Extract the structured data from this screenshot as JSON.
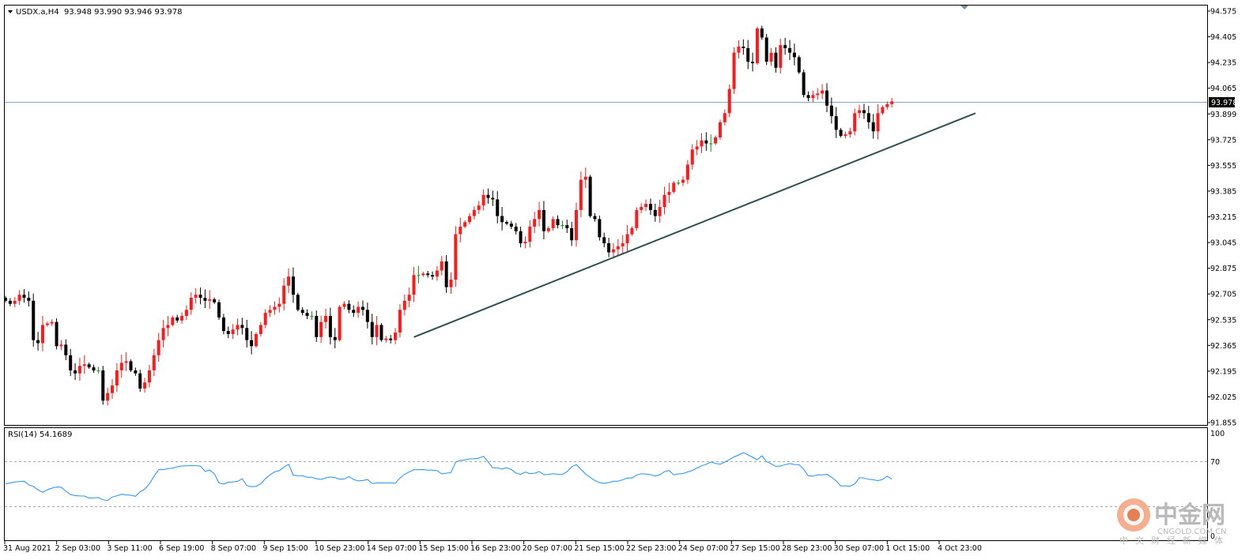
{
  "symbol_line": "USDX.a,H4  93.948 93.990 93.946 93.978",
  "current_price_label": "93.978",
  "rsi_title": "RSI(14) 54.1689",
  "rsi_scale": [
    "100",
    "70",
    "0"
  ],
  "watermark": {
    "name": "中金网",
    "domain": "CNGOLD.COM.CN",
    "tagline": "中文财经新媒体"
  },
  "colors": {
    "bull": "#ff1a1a",
    "bear": "#000000",
    "doji": "#00a000",
    "rsi_line": "#1e90ff",
    "trendline": "#2f4f4f",
    "price_line": "#8aa4c8",
    "level_line": "#a8a8a8"
  },
  "chart_data": [
    {
      "type": "candlestick",
      "symbol": "USDX.a",
      "timeframe": "H4",
      "ohlc_label": {
        "open": 93.948,
        "high": 93.99,
        "low": 93.946,
        "close": 93.978
      },
      "ylim": [
        91.855,
        94.575
      ],
      "yticks": [
        "94.575",
        "94.405",
        "94.235",
        "94.065",
        "93.899",
        "93.725",
        "93.555",
        "93.385",
        "93.215",
        "93.045",
        "92.875",
        "92.705",
        "92.535",
        "92.365",
        "92.195",
        "92.025",
        "91.855"
      ],
      "xticks": [
        "31 Aug 2021",
        "2 Sep 03:00",
        "3 Sep 11:00",
        "6 Sep 19:00",
        "8 Sep 07:00",
        "9 Sep 15:00",
        "10 Sep 23:00",
        "14 Sep 07:00",
        "15 Sep 15:00",
        "16 Sep 23:00",
        "20 Sep 07:00",
        "21 Sep 15:00",
        "22 Sep 23:00",
        "24 Sep 07:00",
        "27 Sep 15:00",
        "28 Sep 23:00",
        "30 Sep 07:00",
        "1 Oct 15:00",
        "4 Oct 23:00"
      ],
      "current_price": 93.978,
      "trendline": {
        "from": {
          "bar": 88,
          "price": 92.42
        },
        "to": {
          "bar": 209,
          "price": 93.9
        }
      },
      "close": [
        92.66,
        92.64,
        92.66,
        92.7,
        92.68,
        92.66,
        92.4,
        92.38,
        92.5,
        92.51,
        92.52,
        92.36,
        92.37,
        92.3,
        92.2,
        92.18,
        92.23,
        92.24,
        92.22,
        92.2,
        92.2,
        92.0,
        92.05,
        92.1,
        92.2,
        92.25,
        92.26,
        92.2,
        92.18,
        92.08,
        92.12,
        92.2,
        92.3,
        92.4,
        92.48,
        92.5,
        92.55,
        92.53,
        92.56,
        92.6,
        92.68,
        92.7,
        92.68,
        92.66,
        92.67,
        92.65,
        92.55,
        92.46,
        92.44,
        92.47,
        92.5,
        92.48,
        92.4,
        92.36,
        92.44,
        92.5,
        92.58,
        92.6,
        92.62,
        92.64,
        92.76,
        92.82,
        92.7,
        92.6,
        92.58,
        92.56,
        92.56,
        92.42,
        92.52,
        92.56,
        92.42,
        92.4,
        92.62,
        92.64,
        92.6,
        92.58,
        92.62,
        92.6,
        92.52,
        92.42,
        92.5,
        92.4,
        92.41,
        92.4,
        92.45,
        92.6,
        92.66,
        92.7,
        92.83,
        92.83,
        92.84,
        92.83,
        92.82,
        92.86,
        92.92,
        92.75,
        92.8,
        93.1,
        93.15,
        93.18,
        93.22,
        93.26,
        93.29,
        93.36,
        93.34,
        93.33,
        93.22,
        93.18,
        93.17,
        93.15,
        93.12,
        93.04,
        93.05,
        93.15,
        93.2,
        93.26,
        93.12,
        93.14,
        93.2,
        93.16,
        93.16,
        93.14,
        93.06,
        93.26,
        93.46,
        93.48,
        93.22,
        93.2,
        93.08,
        93.04,
        92.98,
        93.0,
        93.02,
        93.04,
        93.1,
        93.14,
        93.26,
        93.28,
        93.3,
        93.26,
        93.22,
        93.28,
        93.36,
        93.38,
        93.44,
        93.44,
        93.46,
        93.56,
        93.66,
        93.68,
        93.72,
        93.7,
        93.7,
        93.74,
        93.84,
        93.9,
        94.06,
        94.3,
        94.34,
        94.33,
        94.24,
        94.23,
        94.46,
        94.4,
        94.24,
        94.3,
        94.2,
        94.35,
        94.33,
        94.3,
        94.27,
        94.17,
        94.02,
        94.0,
        94.02,
        94.03,
        94.05,
        93.95,
        93.88,
        93.79,
        93.75,
        93.76,
        93.78,
        93.9,
        93.92,
        93.9,
        93.84,
        93.78,
        93.9,
        93.94,
        93.96,
        93.978
      ],
      "rsi": {
        "name": "RSI(14)",
        "last": 54.1689,
        "ylim": [
          0,
          100
        ],
        "levels": [
          30,
          70
        ],
        "values": [
          49.5,
          50.4,
          51.4,
          51.7,
          52.2,
          48.6,
          47.0,
          43.6,
          41.2,
          43.7,
          45.3,
          46.4,
          46.3,
          42.3,
          39.0,
          37.9,
          37.6,
          37.5,
          35.5,
          35.6,
          36.0,
          33.8,
          33.1,
          36.5,
          37.7,
          39.3,
          38.6,
          38.3,
          37.3,
          41.6,
          44.4,
          49.7,
          56.9,
          63.6,
          63.6,
          64.6,
          65.1,
          66.4,
          67.3,
          67.4,
          67.5,
          67.5,
          67.1,
          61.9,
          63.2,
          59.5,
          50.5,
          49.2,
          51.2,
          51.4,
          52.0,
          54.6,
          47.9,
          46.7,
          47.1,
          49.6,
          54.7,
          58.4,
          61.5,
          62.6,
          66.2,
          68.9,
          58.2,
          57.6,
          57.5,
          56.1,
          56.1,
          54.7,
          53.9,
          55.4,
          56.3,
          55.7,
          54.2,
          54.4,
          56.7,
          53.8,
          52.4,
          52.8,
          53.8,
          49.9,
          50.4,
          50.6,
          50.4,
          50.6,
          50.1,
          55.2,
          59.0,
          61.4,
          63.4,
          63.6,
          63.7,
          63.1,
          63.1,
          62.6,
          59.4,
          60.1,
          60.8,
          71.0,
          72.7,
          73.3,
          74.2,
          74.3,
          75.0,
          76.8,
          71.2,
          65.3,
          65.5,
          64.2,
          65.5,
          63.7,
          60.2,
          58.9,
          61.2,
          59.6,
          60.1,
          61.7,
          58.7,
          58.9,
          59.6,
          59.0,
          58.8,
          61.6,
          66.3,
          68.7,
          64.0,
          59.3,
          55.9,
          52.8,
          50.8,
          50.1,
          50.8,
          52.1,
          52.2,
          53.7,
          55.4,
          55.3,
          58.3,
          59.6,
          59.2,
          58.7,
          57.1,
          58.6,
          61.6,
          62.7,
          58.4,
          59.4,
          59.7,
          61.3,
          62.8,
          65.1,
          67.4,
          68.9,
          71.2,
          69.7,
          69.1,
          71.1,
          73.6,
          76.2,
          78.1,
          80.4,
          78.2,
          75.8,
          73.4,
          77.3,
          71.4,
          69.4,
          66.8,
          67.2,
          68.5,
          69.6,
          68.7,
          68.6,
          63.9,
          57.4,
          57.2,
          58.5,
          58.4,
          59.1,
          56.1,
          52.4,
          47.4,
          47.6,
          47.2,
          49.4,
          55.6,
          55.3,
          54.1,
          53.5,
          52.7,
          53.9,
          57.2,
          54.1689
        ]
      }
    }
  ]
}
